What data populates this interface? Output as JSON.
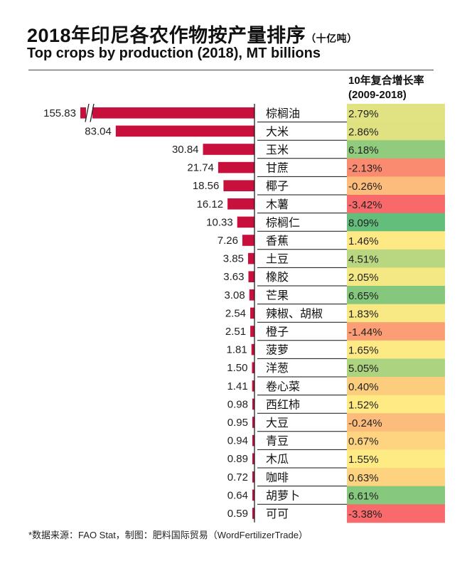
{
  "title": "2018年印尼各农作物按产量排序",
  "title_unit": "（十亿吨）",
  "subtitle": "Top crops by production (2018), MT billions",
  "cagr_header": [
    "10年复合增长率",
    "(2009-2018)"
  ],
  "source": "*数据来源：FAO Stat，制图：肥料国际贸易（WordFertilizerTrade）",
  "colors": {
    "bar": "#c8103c",
    "scale_min": "#f8696b",
    "scale_mid": "#ffeb84",
    "scale_max": "#63be7b"
  },
  "chart_data": {
    "type": "bar",
    "orientation": "horizontal",
    "axis_break_on": "棕榈油",
    "categories": [
      "棕榈油",
      "大米",
      "玉米",
      "甘蔗",
      "椰子",
      "木薯",
      "棕榈仁",
      "香蕉",
      "土豆",
      "橡胶",
      "芒果",
      "辣椒、胡椒",
      "橙子",
      "菠萝",
      "洋葱",
      "卷心菜",
      "西红柿",
      "大豆",
      "青豆",
      "木瓜",
      "咖啡",
      "胡萝卜",
      "可可"
    ],
    "values": [
      155.83,
      83.04,
      30.84,
      21.74,
      18.56,
      16.12,
      10.33,
      7.26,
      3.85,
      3.63,
      3.08,
      2.54,
      2.51,
      1.81,
      1.5,
      1.41,
      0.98,
      0.95,
      0.94,
      0.89,
      0.72,
      0.64,
      0.59
    ],
    "value_labels": [
      "155.83",
      "83.04",
      "30.84",
      "21.74",
      "18.56",
      "16.12",
      "10.33",
      "7.26",
      "3.85",
      "3.63",
      "3.08",
      "2.54",
      "2.51",
      "1.81",
      "1.50",
      "1.41",
      "0.98",
      "0.95",
      "0.94",
      "0.89",
      "0.72",
      "0.64",
      "0.59"
    ],
    "cagr_labels": [
      "2.79%",
      "2.86%",
      "6.18%",
      "-2.13%",
      "-0.26%",
      "-3.42%",
      "8.09%",
      "1.46%",
      "4.51%",
      "2.05%",
      "6.65%",
      "1.83%",
      "-1.44%",
      "1.65%",
      "5.05%",
      "0.40%",
      "1.52%",
      "-0.24%",
      "0.67%",
      "1.55%",
      "0.63%",
      "6.61%",
      "-3.38%"
    ],
    "cagr_values": [
      2.79,
      2.86,
      6.18,
      -2.13,
      -0.26,
      -3.42,
      8.09,
      1.46,
      4.51,
      2.05,
      6.65,
      1.83,
      -1.44,
      1.65,
      5.05,
      0.4,
      1.52,
      -0.24,
      0.67,
      1.55,
      0.63,
      6.61,
      -3.38
    ]
  }
}
